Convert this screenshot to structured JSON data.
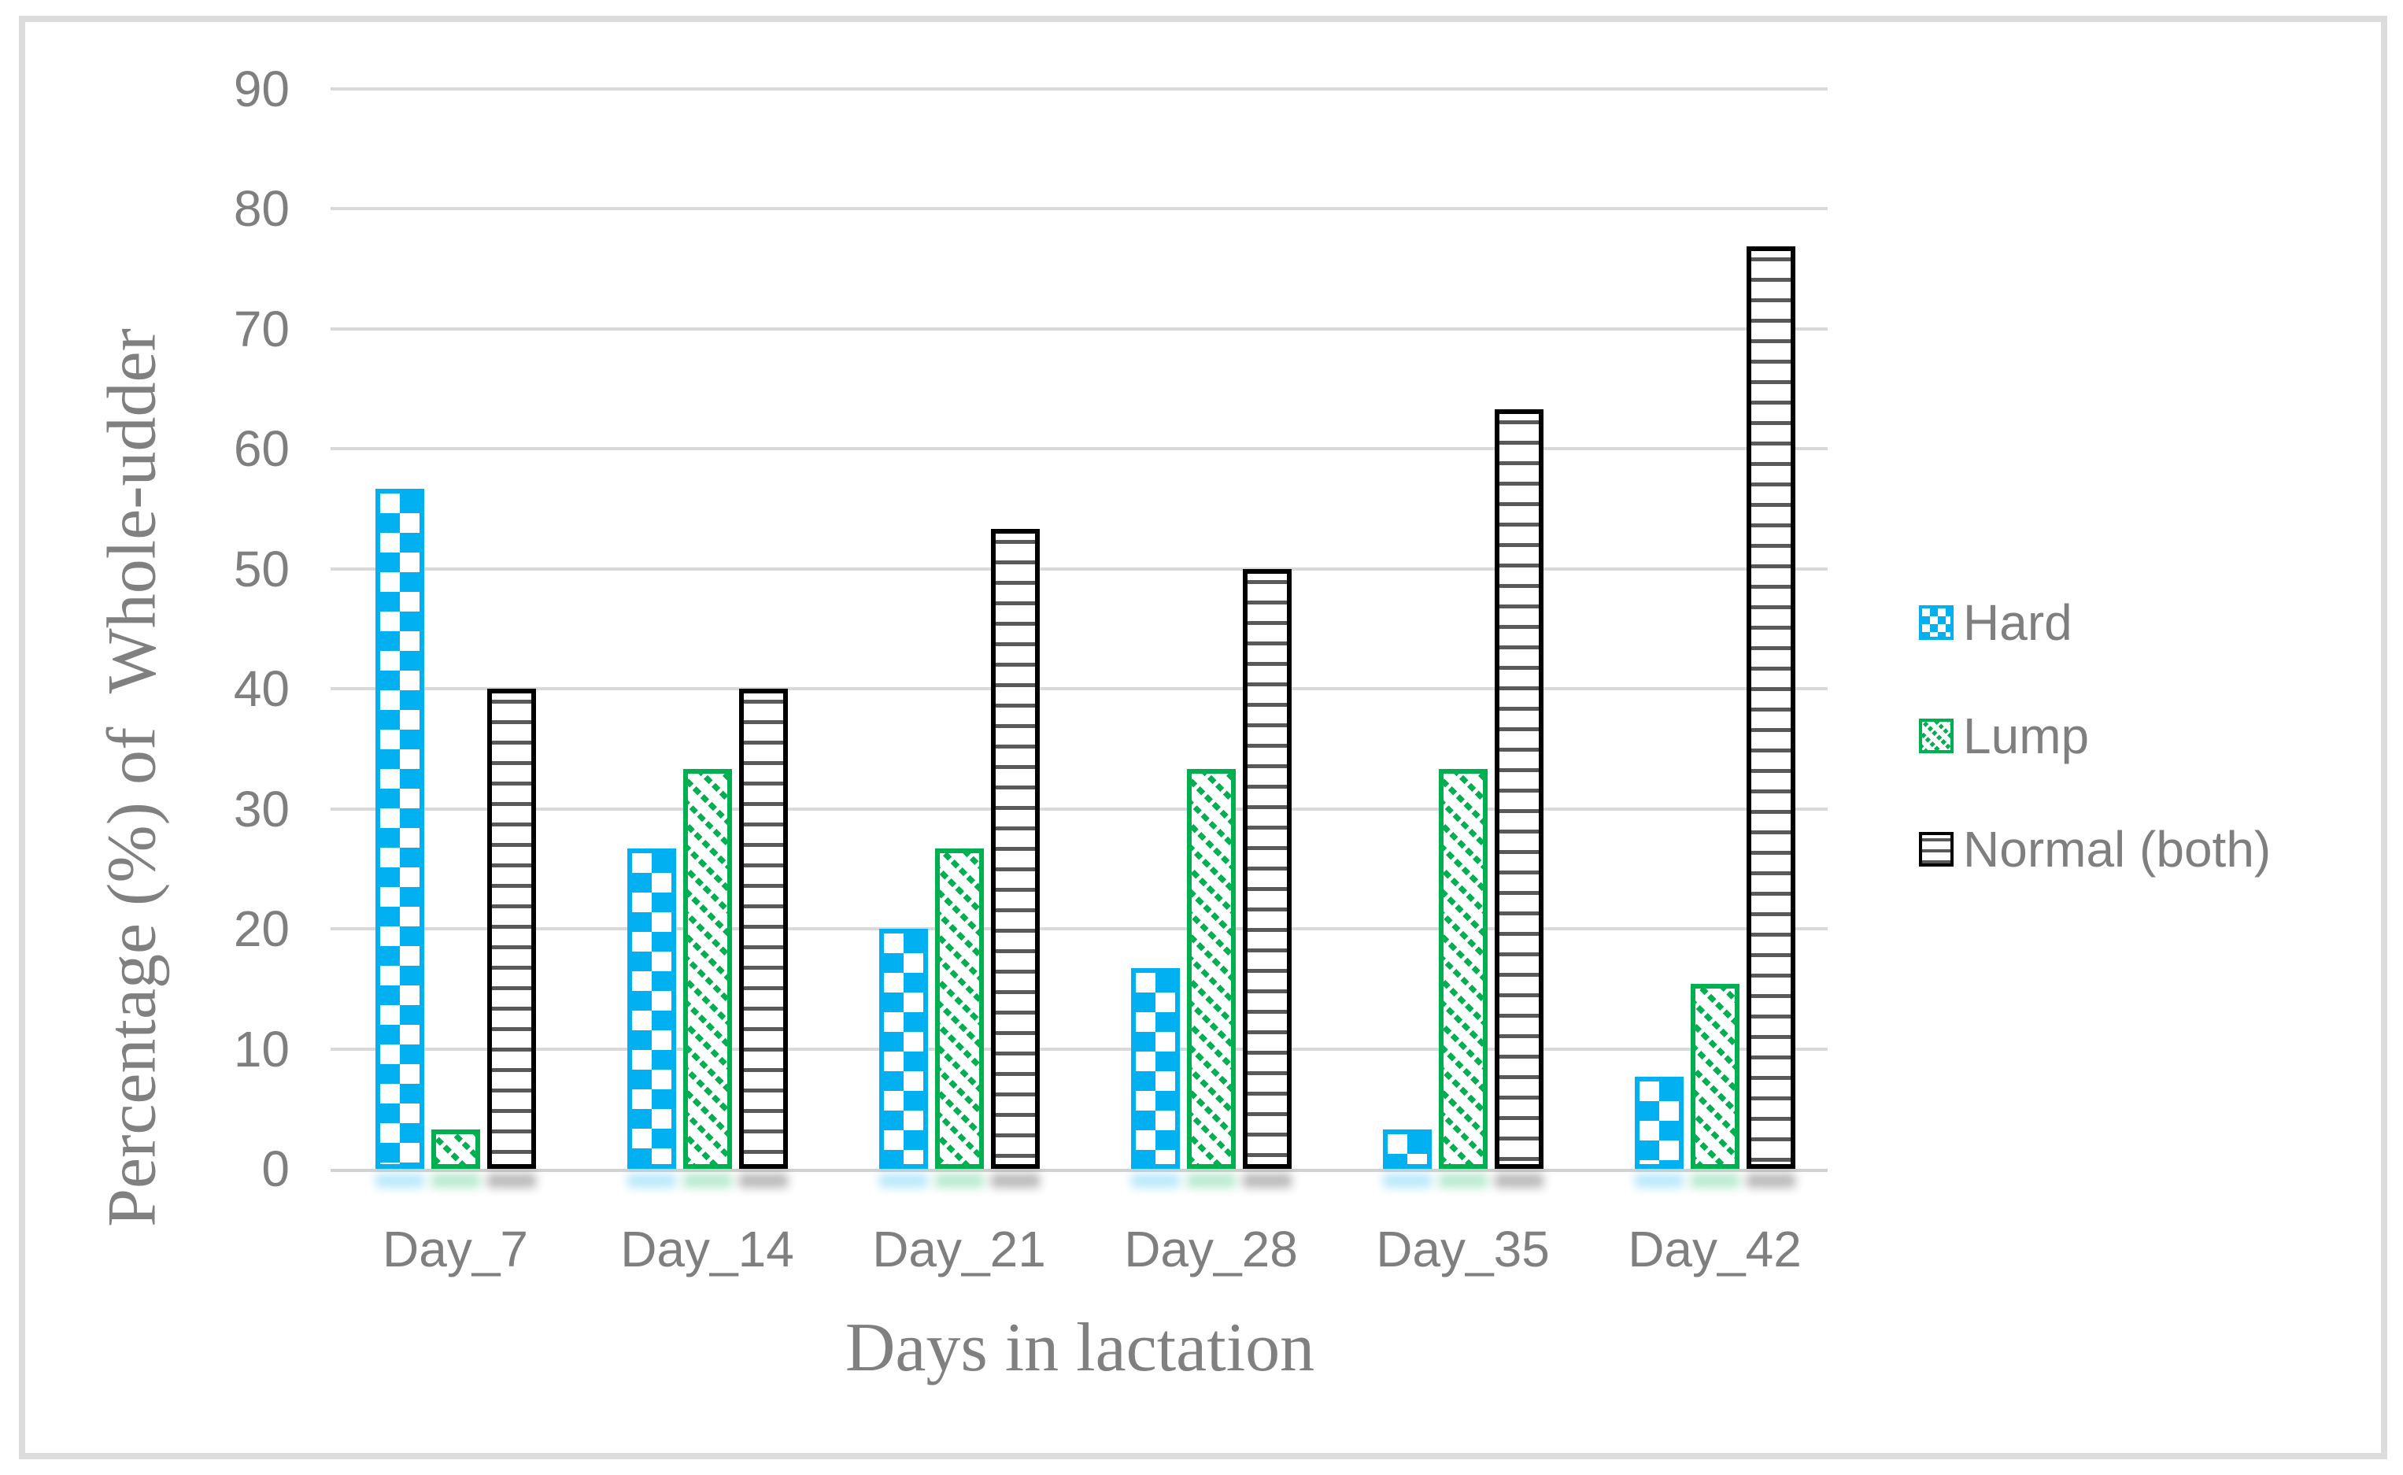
{
  "figure": {
    "background_color": "#ffffff",
    "border_color": "#dcdcdc"
  },
  "chart_data": {
    "type": "bar",
    "title": "",
    "xlabel": "Days in lactation",
    "ylabel": "Percentage (%) of  Whole-udder",
    "categories": [
      "Day_7",
      "Day_14",
      "Day_21",
      "Day_28",
      "Day_35",
      "Day_42"
    ],
    "series": [
      {
        "name": "Hard",
        "pattern": "checker",
        "color": "#00b0f0",
        "values": [
          56.7,
          26.7,
          20.0,
          16.7,
          3.3,
          7.7
        ]
      },
      {
        "name": "Lump",
        "pattern": "diagonal-dash",
        "color": "#00b050",
        "values": [
          3.3,
          33.3,
          26.7,
          33.3,
          33.3,
          15.4
        ]
      },
      {
        "name": "Normal (both)",
        "pattern": "horizontal-lines",
        "color": "#000000",
        "line_color": "#595959",
        "values": [
          40.0,
          40.0,
          53.3,
          50.0,
          63.3,
          76.9
        ]
      }
    ],
    "ylim": [
      0,
      90
    ],
    "ytick_step": 10,
    "ytick_labels": [
      "0",
      "10",
      "20",
      "30",
      "40",
      "50",
      "60",
      "70",
      "80",
      "90"
    ],
    "grid": true,
    "gridline_color": "#d9d9d9",
    "tick_label_color": "#7f7f7f",
    "axis_title_color": "#808080",
    "legend_position": "right"
  }
}
